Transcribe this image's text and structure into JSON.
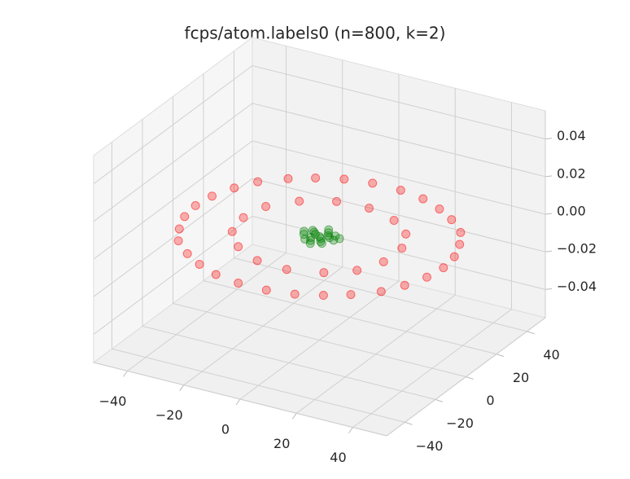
{
  "chart_data": {
    "type": "scatter3d",
    "title": "fcps/atom.labels0 (n=800, k=2)",
    "xlim": [
      -52,
      52
    ],
    "ylim": [
      -52,
      52
    ],
    "zlim": [
      -0.055,
      0.055
    ],
    "xticks": [
      {
        "value": -40,
        "label": "−40"
      },
      {
        "value": -20,
        "label": "−20"
      },
      0,
      20,
      40
    ],
    "yticks": [
      {
        "value": -40,
        "label": "−40"
      },
      {
        "value": -20,
        "label": "−20"
      },
      0,
      20,
      40
    ],
    "zticks": [
      {
        "value": -0.04,
        "label": "−0.04"
      },
      {
        "value": -0.02,
        "label": "−0.02"
      },
      {
        "value": 0,
        "label": "0.00"
      },
      0.02,
      0.04
    ],
    "grid": true,
    "series": [
      {
        "color": "#ff0000",
        "x": [
          44,
          43,
          40,
          36,
          29,
          22,
          14,
          5,
          -5,
          -14,
          -22,
          -29,
          -36,
          -40,
          -43,
          -44,
          -43,
          -40,
          -36,
          -29,
          -22,
          -14,
          -5,
          5,
          14,
          22,
          29,
          36,
          40,
          43,
          26,
          22,
          14,
          3,
          -8,
          -18,
          -25,
          -27,
          -25,
          -18,
          -8,
          3,
          14,
          22,
          26
        ],
        "y": [
          0,
          9,
          18,
          26,
          33,
          38,
          42,
          44,
          44,
          42,
          38,
          33,
          26,
          18,
          9,
          0,
          -9,
          -18,
          -26,
          -33,
          -38,
          -42,
          -44,
          -44,
          -42,
          -38,
          -33,
          -26,
          -18,
          -9,
          6,
          16,
          23,
          27,
          26,
          20,
          11,
          0,
          -11,
          -20,
          -26,
          -27,
          -23,
          -16,
          -6
        ],
        "z": [
          0,
          0,
          0,
          0,
          0,
          0,
          0,
          0,
          0,
          0,
          0,
          0,
          0,
          0,
          0,
          0,
          0,
          0,
          0,
          0,
          0,
          0,
          0,
          0,
          0,
          0,
          0,
          0,
          0,
          0,
          0,
          0,
          0,
          0,
          0,
          0,
          0,
          0,
          0,
          0,
          0,
          0,
          0,
          0,
          0
        ]
      },
      {
        "color": "#008000",
        "x": [
          0,
          3,
          -3,
          2,
          -2,
          5,
          -5,
          1,
          -1,
          4,
          -4,
          3,
          -3,
          6,
          -6,
          0,
          0,
          2,
          -2,
          1
        ],
        "y": [
          0,
          1,
          2,
          -3,
          -2,
          0,
          -1,
          4,
          -4,
          3,
          3,
          -4,
          -4,
          2,
          1,
          6,
          -6,
          2,
          1,
          -1
        ],
        "z": [
          0,
          0,
          0,
          0,
          0,
          0,
          0,
          0,
          0,
          0,
          0,
          0,
          0,
          0,
          0,
          0,
          0,
          0,
          0,
          0
        ]
      }
    ]
  }
}
